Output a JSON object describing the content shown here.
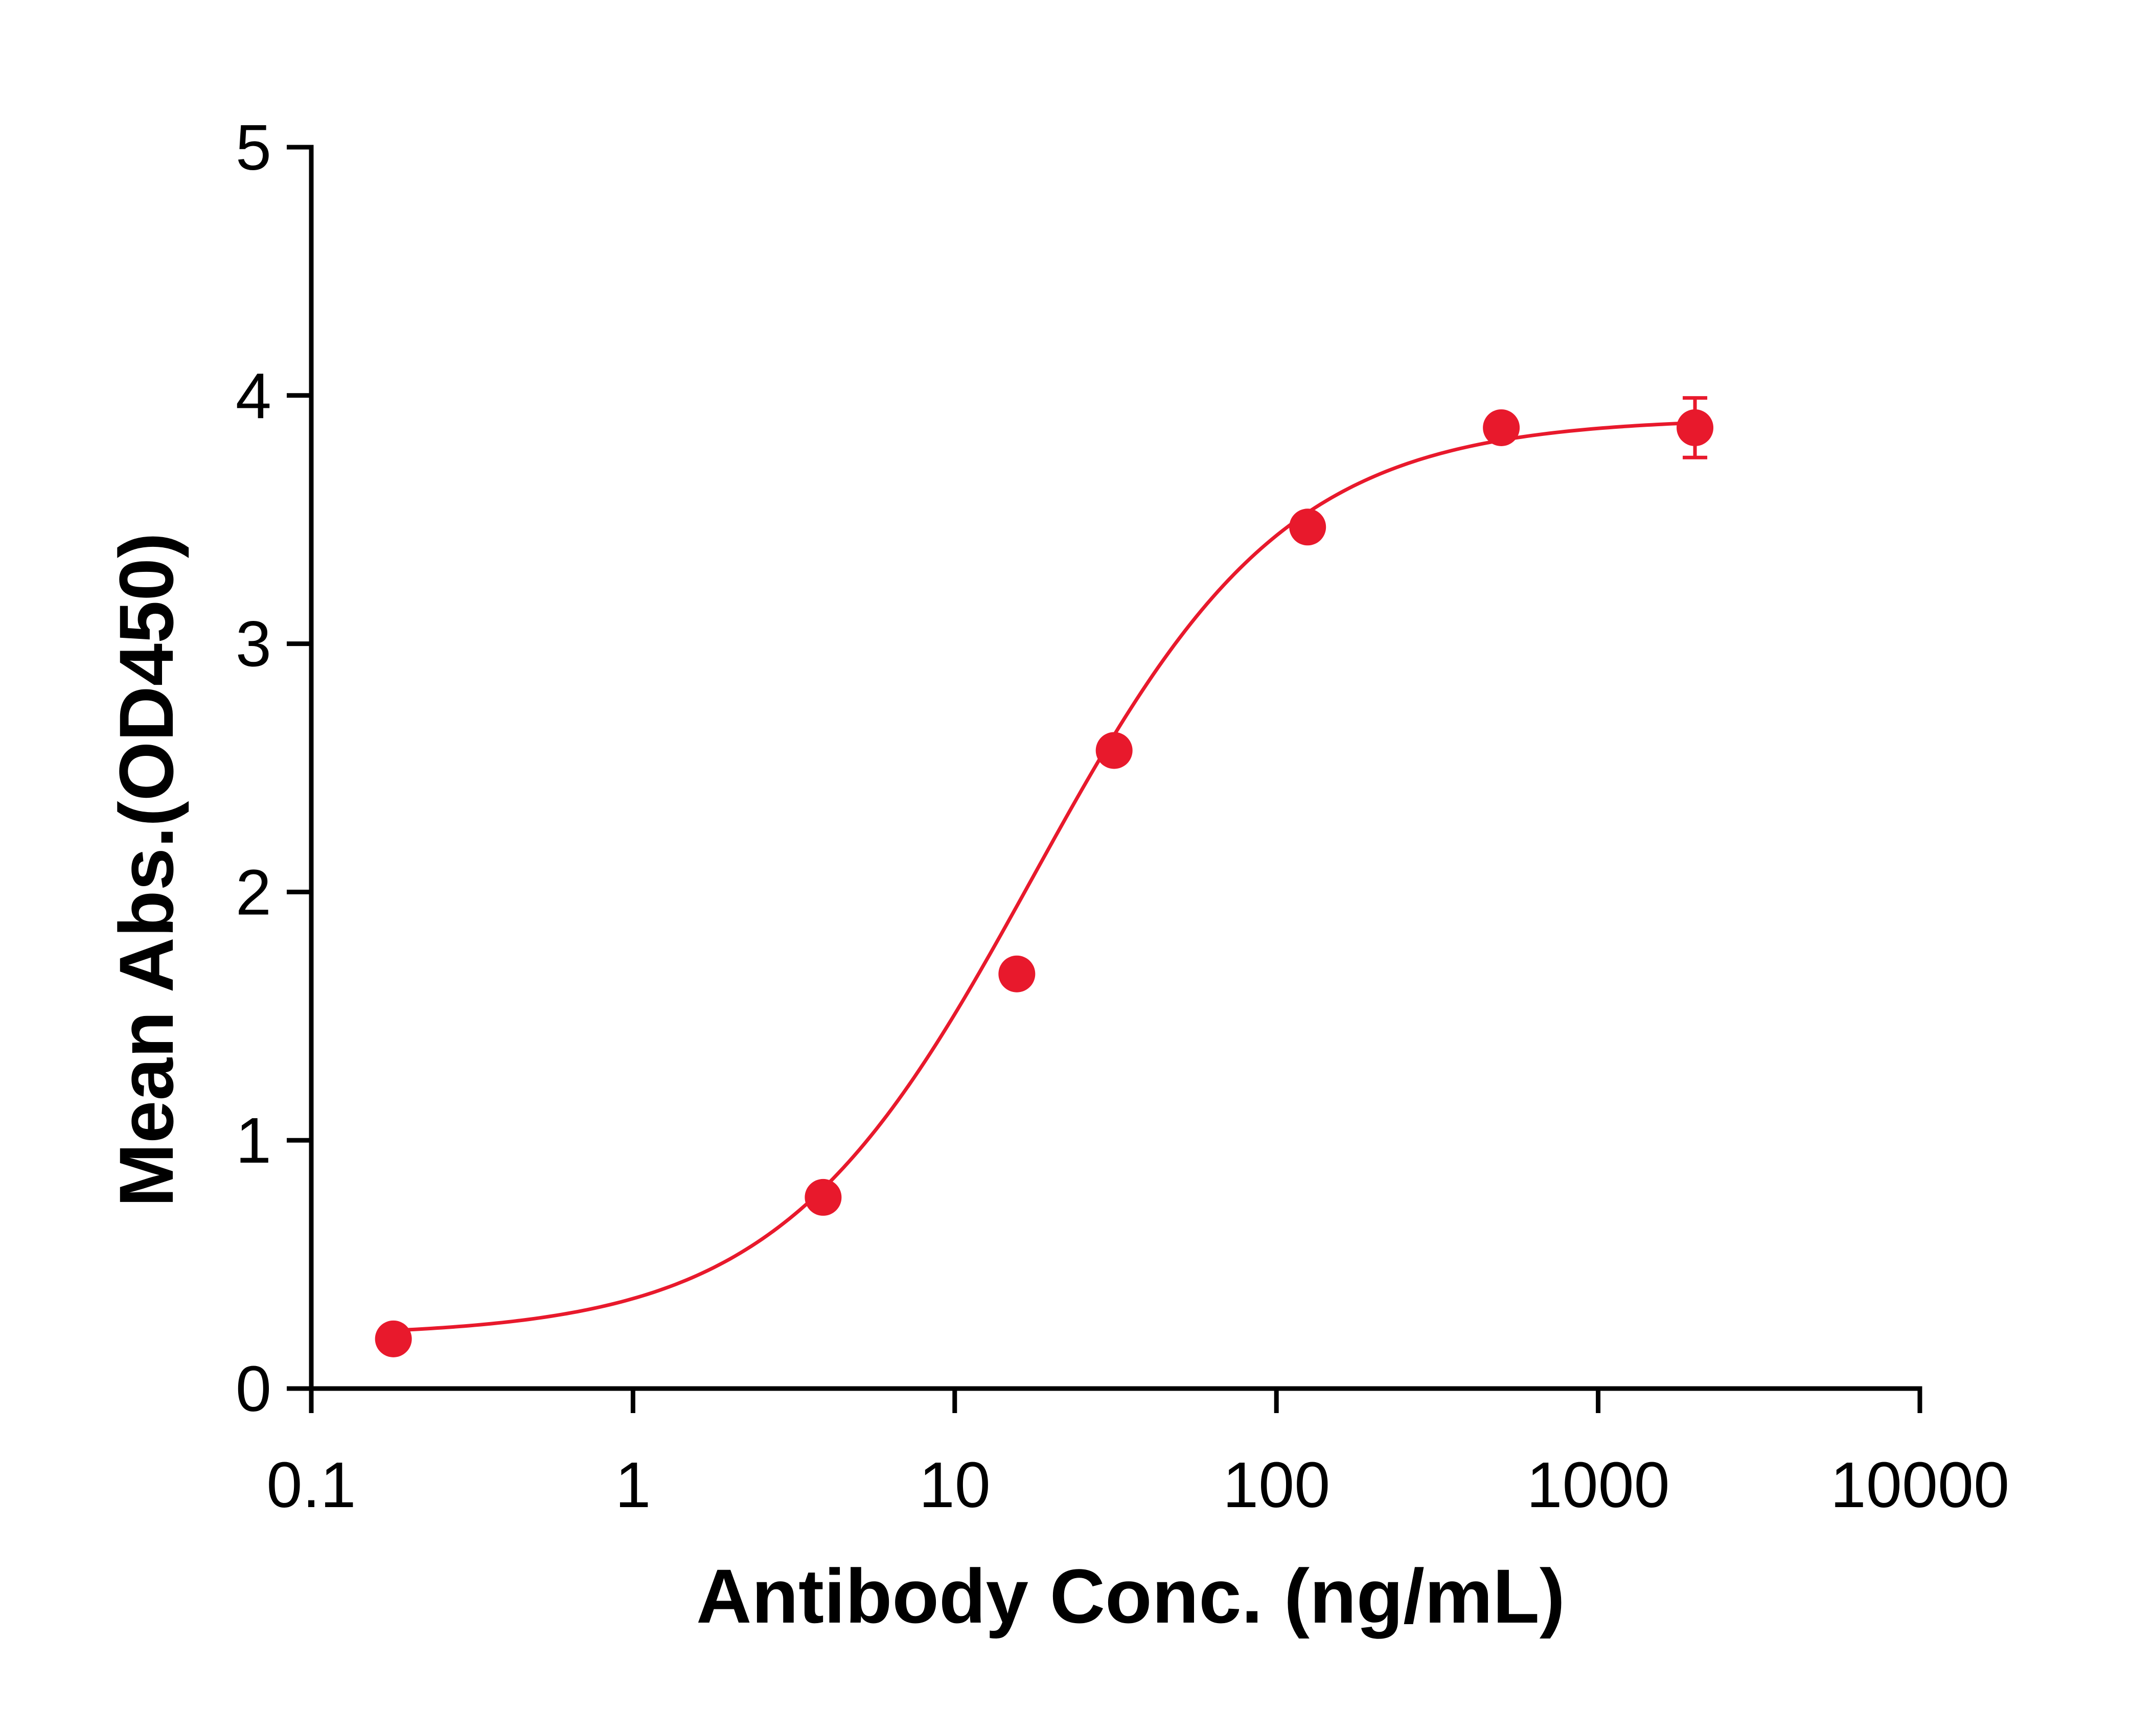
{
  "chart_data": {
    "type": "scatter",
    "title": "",
    "xlabel": "Antibody Conc. (ng/mL)",
    "ylabel": "Mean Abs.(OD450)",
    "x_scale": "log",
    "xlim": [
      0.1,
      10000
    ],
    "ylim": [
      0,
      5
    ],
    "x_ticks": [
      0.1,
      1,
      10,
      100,
      1000,
      10000
    ],
    "x_tick_labels": [
      "0.1",
      "1",
      "10",
      "100",
      "1000",
      "10000"
    ],
    "y_ticks": [
      0,
      1,
      2,
      3,
      4,
      5
    ],
    "y_tick_labels": [
      "0",
      "1",
      "2",
      "3",
      "4",
      "5"
    ],
    "grid": false,
    "legend": "none",
    "color": "#E8192C",
    "series": [
      {
        "x": [
          0.18,
          3.9,
          15.6,
          31.3,
          125,
          500,
          2000
        ],
        "y": [
          0.2,
          0.77,
          1.67,
          2.57,
          3.47,
          3.87,
          3.87
        ],
        "y_err": [
          0,
          0,
          0,
          0,
          0,
          0,
          0.12
        ],
        "fit": {
          "model": "4PL",
          "bottom": 0.21,
          "top": 3.91,
          "ec50": 17.5,
          "hill": 1.1
        }
      }
    ]
  }
}
